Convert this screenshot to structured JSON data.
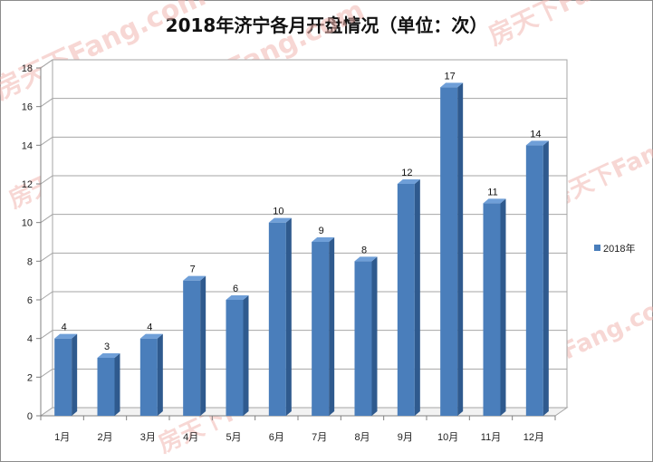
{
  "chart_data": {
    "type": "bar",
    "title": "2018年济宁各月开盘情况（单位：次）",
    "categories": [
      "1月",
      "2月",
      "3月",
      "4月",
      "5月",
      "6月",
      "7月",
      "8月",
      "9月",
      "10月",
      "11月",
      "12月"
    ],
    "series": [
      {
        "name": "2018年",
        "values": [
          4,
          3,
          4,
          7,
          6,
          10,
          9,
          8,
          12,
          17,
          11,
          14
        ],
        "color": "#4a7ebb"
      }
    ],
    "ylim": [
      0,
      18
    ],
    "yticks": [
      0,
      2,
      4,
      6,
      8,
      10,
      12,
      14,
      16,
      18
    ],
    "grid": true,
    "legend_position": "right",
    "style": "3d-bar"
  },
  "watermark": {
    "text": "房天下Fang.com"
  }
}
